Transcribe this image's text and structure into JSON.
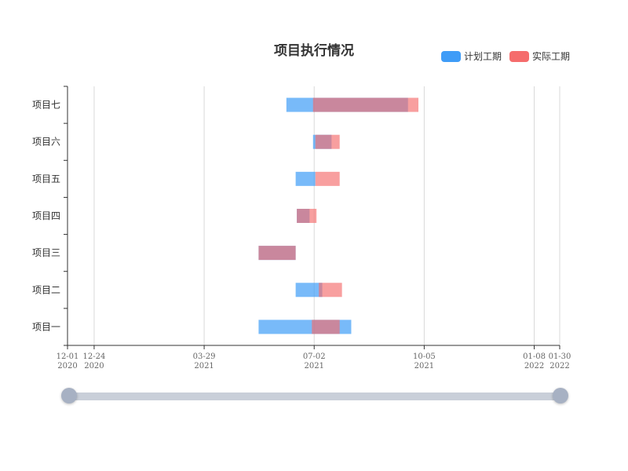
{
  "chart_data": {
    "type": "bar",
    "title": "项目执行情况",
    "categories": [
      "项目一",
      "项目二",
      "项目三",
      "项目四",
      "项目五",
      "项目六",
      "项目七"
    ],
    "series": [
      {
        "name": "计划工期",
        "color": "#3f9cf7",
        "ranges": [
          [
            "2021-05-15",
            "2021-08-03"
          ],
          [
            "2021-06-16",
            "2021-07-09"
          ],
          [
            "2021-05-15",
            "2021-06-16"
          ],
          [
            "2021-06-17",
            "2021-06-28"
          ],
          [
            "2021-06-16",
            "2021-07-03"
          ],
          [
            "2021-07-01",
            "2021-07-17"
          ],
          [
            "2021-06-08",
            "2021-09-21"
          ]
        ]
      },
      {
        "name": "实际工期",
        "color": "#f56c6c",
        "ranges": [
          [
            "2021-06-30",
            "2021-07-24"
          ],
          [
            "2021-07-06",
            "2021-07-26"
          ],
          [
            "2021-05-15",
            "2021-06-16"
          ],
          [
            "2021-06-17",
            "2021-07-04"
          ],
          [
            "2021-07-03",
            "2021-07-24"
          ],
          [
            "2021-07-03",
            "2021-07-24"
          ],
          [
            "2021-07-01",
            "2021-09-30"
          ]
        ]
      }
    ],
    "x_axis": {
      "type": "time",
      "range": [
        "2020-12-01",
        "2022-01-30"
      ],
      "ticks": [
        {
          "date": "2020-12-01",
          "label1": "12-01",
          "label2": "2020"
        },
        {
          "date": "2020-12-24",
          "label1": "12-24",
          "label2": "2020"
        },
        {
          "date": "2021-03-29",
          "label1": "03-29",
          "label2": "2021"
        },
        {
          "date": "2021-07-02",
          "label1": "07-02",
          "label2": "2021"
        },
        {
          "date": "2021-10-05",
          "label1": "10-05",
          "label2": "2021"
        },
        {
          "date": "2022-01-08",
          "label1": "01-08",
          "label2": "2022"
        },
        {
          "date": "2022-01-30",
          "label1": "01-30",
          "label2": "2022"
        }
      ]
    },
    "grid": "vertical",
    "legend_position": "top-right",
    "data_zoom": {
      "start": 0,
      "end": 100
    }
  }
}
